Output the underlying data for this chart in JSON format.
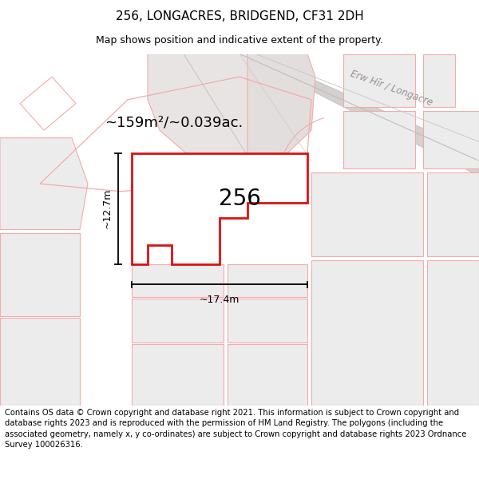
{
  "title": "256, LONGACRES, BRIDGEND, CF31 2DH",
  "subtitle": "Map shows position and indicative extent of the property.",
  "footer": "Contains OS data © Crown copyright and database right 2021. This information is subject to Crown copyright and database rights 2023 and is reproduced with the permission of HM Land Registry. The polygons (including the associated geometry, namely x, y co-ordinates) are subject to Crown copyright and database rights 2023 Ordnance Survey 100026316.",
  "map_bg": "#f7f3f3",
  "plot_fill": "#ffffff",
  "plot_outline_color": "#dd1111",
  "neighbor_outline_color": "#f5aaaa",
  "gray_fill": "#e8e4e4",
  "light_gray_fill": "#ececec",
  "road_gray": "#d0cccc",
  "area_text": "~159m²/~0.039ac.",
  "number_text": "256",
  "dim_h": "~12.7m",
  "dim_w": "~17.4m",
  "road_label": "Erw Hīr / Longacre",
  "title_fontsize": 11,
  "subtitle_fontsize": 9,
  "footer_fontsize": 7.2
}
